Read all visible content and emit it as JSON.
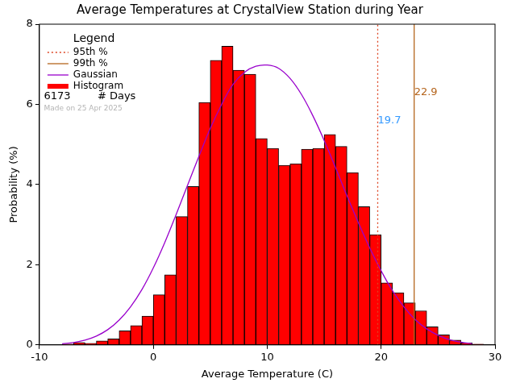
{
  "chart_data": {
    "type": "histogram",
    "title": "Average Temperatures at CrystalView Station during Year",
    "x_label": "Average Temperature (C)",
    "y_label": "Probability (%)",
    "xlim": [
      -10,
      30
    ],
    "xticks": [
      -10,
      0,
      10,
      20,
      30
    ],
    "ylim": [
      0,
      8
    ],
    "yticks": [
      0,
      2,
      4,
      6,
      8
    ],
    "grid": false,
    "legend": "upper left",
    "legend_title": "Legend",
    "series": [
      {
        "name": "95th %",
        "type": "vline",
        "x": 19.7,
        "color": "#dd4422",
        "line_style": "dotted"
      },
      {
        "name": "99th %",
        "type": "vline",
        "x": 22.9,
        "color": "#b5651d",
        "line_style": "solid"
      },
      {
        "name": "Gaussian",
        "type": "line",
        "color": "#9900cc",
        "line_style": "solid",
        "x": [
          -8,
          -7,
          -6,
          -5,
          -4,
          -3,
          -2,
          -1,
          0,
          1,
          2,
          3,
          4,
          5,
          6,
          7,
          8,
          9,
          10,
          11,
          12,
          13,
          14,
          15,
          16,
          17,
          18,
          19,
          20,
          21,
          22,
          23,
          24,
          25,
          26,
          27,
          28
        ],
        "values": [
          0.03,
          0.06,
          0.12,
          0.22,
          0.38,
          0.62,
          0.95,
          1.38,
          1.92,
          2.55,
          3.25,
          3.98,
          4.7,
          5.4,
          6.0,
          6.5,
          6.8,
          6.95,
          6.98,
          6.9,
          6.65,
          6.25,
          5.72,
          5.1,
          4.42,
          3.72,
          3.05,
          2.42,
          1.85,
          1.35,
          0.95,
          0.63,
          0.4,
          0.24,
          0.13,
          0.07,
          0.03
        ]
      },
      {
        "name": "Histogram",
        "type": "histogram",
        "color": "#ff0000",
        "bins": [
          -8,
          -7,
          -6,
          -5,
          -4,
          -3,
          -2,
          -1,
          0,
          1,
          2,
          3,
          4,
          5,
          6,
          7,
          8,
          9,
          10,
          11,
          12,
          13,
          14,
          15,
          16,
          17,
          18,
          19,
          20,
          21,
          22,
          23,
          24,
          25,
          26,
          27,
          28,
          29
        ],
        "values": [
          0.02,
          0.06,
          0.04,
          0.1,
          0.15,
          0.35,
          0.48,
          0.72,
          1.25,
          1.75,
          3.2,
          3.95,
          6.05,
          7.1,
          7.45,
          6.85,
          6.75,
          5.15,
          4.9,
          4.48,
          4.52,
          4.88,
          4.9,
          5.25,
          4.95,
          4.3,
          3.45,
          2.75,
          1.55,
          1.3,
          1.05,
          0.85,
          0.45,
          0.25,
          0.12,
          0.05,
          0.02
        ]
      }
    ],
    "annotations": [
      {
        "text": "19.7",
        "x": 19.7,
        "y": 5.6,
        "color": "#3399ff"
      },
      {
        "text": "22.9",
        "x": 22.9,
        "y": 6.3,
        "color": "#b5651d"
      },
      {
        "text": "6173",
        "x": -9.6,
        "y": 6.2,
        "color": "#000000"
      },
      {
        "text": "# Days",
        "x": -4.9,
        "y": 6.2,
        "color": "#000000"
      },
      {
        "text": "Made on 25 Apr 2025",
        "x": -9.6,
        "y": 5.9,
        "color": "#b4b4b4"
      }
    ]
  }
}
